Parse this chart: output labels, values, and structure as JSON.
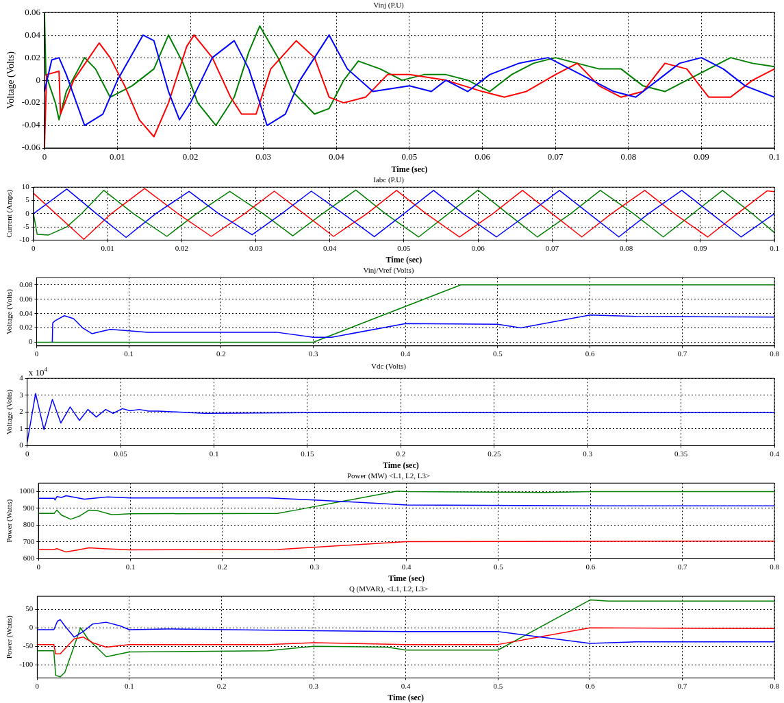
{
  "chart_data": [
    {
      "type": "line",
      "title": "Vinj (P.U)",
      "xlabel": "Time (sec)",
      "ylabel": "Voltage (Volts)",
      "xlim": [
        0,
        0.1
      ],
      "xticks": [
        0,
        0.01,
        0.02,
        0.03,
        0.04,
        0.05,
        0.06,
        0.07,
        0.08,
        0.09,
        0.1
      ],
      "ylim": [
        -0.06,
        0.06
      ],
      "yticks": [
        -0.06,
        -0.04,
        -0.02,
        0,
        0.02,
        0.04,
        0.06
      ],
      "grid": true,
      "series": [
        {
          "color": "#0000ff",
          "x": [
            0,
            0.001,
            0.002,
            0.003,
            0.0055,
            0.008,
            0.01,
            0.0135,
            0.015,
            0.017,
            0.0185,
            0.02,
            0.023,
            0.026,
            0.028,
            0.0305,
            0.033,
            0.035,
            0.039,
            0.0415,
            0.045,
            0.05,
            0.053,
            0.055,
            0.058,
            0.061,
            0.065,
            0.069,
            0.072,
            0.075,
            0.078,
            0.081,
            0.084,
            0.087,
            0.09,
            0.093,
            0.096,
            0.1
          ],
          "values": [
            -0.01,
            0.018,
            0.02,
            0.005,
            -0.04,
            -0.03,
            0,
            0.04,
            0.035,
            -0.01,
            -0.035,
            -0.02,
            0.02,
            0.035,
            0.01,
            -0.04,
            -0.03,
            0,
            0.04,
            0.01,
            -0.01,
            -0.005,
            -0.01,
            0,
            -0.01,
            0.005,
            0.015,
            0.02,
            0.01,
            0,
            -0.01,
            -0.015,
            0,
            0.015,
            0.02,
            0.01,
            -0.005,
            -0.015
          ]
        },
        {
          "color": "#ff0000",
          "x": [
            0,
            0.0003,
            0.002,
            0.0022,
            0.004,
            0.0075,
            0.009,
            0.011,
            0.013,
            0.015,
            0.017,
            0.0195,
            0.0205,
            0.023,
            0.0255,
            0.027,
            0.029,
            0.031,
            0.0345,
            0.037,
            0.039,
            0.041,
            0.044,
            0.047,
            0.05,
            0.055,
            0.06,
            0.063,
            0.066,
            0.07,
            0.073,
            0.076,
            0.079,
            0.082,
            0.085,
            0.088,
            0.091,
            0.094,
            0.097,
            0.1
          ],
          "values": [
            -0.06,
            0.005,
            0.008,
            -0.03,
            0,
            0.033,
            0.02,
            -0.005,
            -0.035,
            -0.05,
            -0.02,
            0.03,
            0.04,
            0.02,
            -0.015,
            -0.03,
            -0.03,
            0.01,
            0.035,
            0.02,
            -0.015,
            -0.02,
            -0.015,
            0.005,
            0.005,
            0,
            -0.01,
            -0.015,
            -0.01,
            0.005,
            0.015,
            -0.005,
            -0.015,
            -0.01,
            0.015,
            0.01,
            -0.015,
            -0.015,
            0,
            0.01
          ]
        },
        {
          "color": "#008000",
          "x": [
            0,
            0.0002,
            0.0015,
            0.002,
            0.003,
            0.0055,
            0.007,
            0.009,
            0.012,
            0.015,
            0.017,
            0.019,
            0.021,
            0.0235,
            0.026,
            0.028,
            0.0295,
            0.032,
            0.034,
            0.037,
            0.039,
            0.041,
            0.043,
            0.046,
            0.049,
            0.052,
            0.055,
            0.058,
            0.061,
            0.064,
            0.067,
            0.07,
            0.073,
            0.076,
            0.079,
            0.082,
            0.085,
            0.088,
            0.091,
            0.094,
            0.097,
            0.1
          ],
          "values": [
            0.06,
            0.005,
            -0.02,
            -0.035,
            -0.01,
            0.02,
            0.01,
            -0.015,
            -0.005,
            0.01,
            0.04,
            0.015,
            -0.02,
            -0.04,
            -0.015,
            0.025,
            0.048,
            0.02,
            -0.01,
            -0.03,
            -0.025,
            0,
            0.017,
            0.01,
            0,
            0.005,
            0.005,
            0,
            -0.01,
            0.005,
            0.015,
            0.02,
            0.015,
            0.01,
            0.01,
            -0.005,
            -0.01,
            0,
            0.01,
            0.02,
            0.015,
            0.012
          ]
        }
      ]
    },
    {
      "type": "line",
      "title": "Iabc (P.U)",
      "xlabel": "Time (sec)",
      "ylabel": "Current (Amps)",
      "xlim": [
        0,
        0.1
      ],
      "xticks": [
        0,
        0.01,
        0.02,
        0.03,
        0.04,
        0.05,
        0.06,
        0.07,
        0.08,
        0.09,
        0.1
      ],
      "ylim": [
        -10,
        10
      ],
      "yticks": [
        -10,
        -5,
        0,
        5,
        10
      ],
      "grid": true,
      "series": [
        {
          "color": "#0000ff",
          "x": [
            0,
            0.0045,
            0.0085,
            0.0125,
            0.0165,
            0.021,
            0.025,
            0.0295,
            0.0335,
            0.0375,
            0.0418,
            0.046,
            0.05,
            0.054,
            0.058,
            0.0625,
            0.0668,
            0.071,
            0.075,
            0.079,
            0.083,
            0.0875,
            0.0915,
            0.0955,
            0.1
          ],
          "values": [
            0,
            9.3,
            0,
            -9,
            0,
            8.4,
            0,
            -8,
            0,
            8.5,
            0,
            -8.7,
            0,
            8.8,
            0,
            -8.8,
            0,
            8.8,
            0,
            -8.8,
            0,
            8.8,
            0,
            -8.8,
            0
          ]
        },
        {
          "color": "#ff0000",
          "x": [
            0,
            0.0068,
            0.0105,
            0.015,
            0.0195,
            0.024,
            0.0285,
            0.0325,
            0.0365,
            0.0405,
            0.045,
            0.049,
            0.053,
            0.0575,
            0.062,
            0.066,
            0.07,
            0.074,
            0.078,
            0.0825,
            0.0865,
            0.091,
            0.095,
            0.099,
            0.1
          ],
          "values": [
            7.7,
            -9.7,
            0,
            9.5,
            0,
            -8.6,
            0,
            8.5,
            0,
            -8.6,
            0,
            8.8,
            0,
            -8.8,
            0,
            8.8,
            0,
            -8.8,
            0,
            8.8,
            0,
            -8.8,
            0,
            8.6,
            8.3
          ]
        },
        {
          "color": "#008000",
          "x": [
            0,
            0.0005,
            0.002,
            0.0045,
            0.0065,
            0.0095,
            0.0135,
            0.018,
            0.022,
            0.0265,
            0.031,
            0.035,
            0.039,
            0.0435,
            0.0475,
            0.052,
            0.056,
            0.06,
            0.064,
            0.068,
            0.0725,
            0.0765,
            0.081,
            0.085,
            0.089,
            0.093,
            0.097,
            0.1
          ],
          "values": [
            0,
            -7.8,
            -8.1,
            -5,
            0,
            8.8,
            0,
            -8.6,
            0,
            8.4,
            0,
            -8.4,
            0,
            8.9,
            0,
            -8.8,
            0,
            8.9,
            0,
            -8.8,
            0,
            8.8,
            0,
            -8.8,
            0,
            8.8,
            0,
            -7.2
          ]
        }
      ]
    },
    {
      "type": "line",
      "title": "Vinj/Vref (Volts)",
      "ylabel": "Voltage (Volts)",
      "xlim": [
        0,
        0.8
      ],
      "xticks": [
        0,
        0.1,
        0.2,
        0.3,
        0.4,
        0.5,
        0.6,
        0.7,
        0.8
      ],
      "ylim": [
        -0.005,
        0.09
      ],
      "yticks": [
        0,
        0.02,
        0.04,
        0.06,
        0.08
      ],
      "grid": true,
      "series": [
        {
          "color": "#0000ff",
          "x": [
            0.017,
            0.0175,
            0.02,
            0.03,
            0.04,
            0.05,
            0.06,
            0.07,
            0.08,
            0.1,
            0.12,
            0.2,
            0.26,
            0.3,
            0.32,
            0.4,
            0.5,
            0.525,
            0.6,
            0.65,
            0.8
          ],
          "values": [
            0,
            0.027,
            0.03,
            0.037,
            0.033,
            0.02,
            0.012,
            0.015,
            0.018,
            0.016,
            0.014,
            0.014,
            0.014,
            0.007,
            0.007,
            0.026,
            0.025,
            0.02,
            0.038,
            0.036,
            0.035
          ]
        },
        {
          "color": "#008000",
          "x": [
            0,
            0.3,
            0.46,
            0.8
          ],
          "values": [
            0,
            0,
            0.08,
            0.08
          ]
        }
      ]
    },
    {
      "type": "line",
      "title": "Vdc (Volts)",
      "xlabel": "Time (sec)",
      "ylabel": "Voltage (Volts)",
      "annotations": [
        "x 10$^{4}$"
      ],
      "xlim": [
        0,
        0.4
      ],
      "xticks": [
        0,
        0.05,
        0.1,
        0.15,
        0.2,
        0.25,
        0.3,
        0.35,
        0.4
      ],
      "ylim": [
        0,
        4
      ],
      "yticks": [
        0,
        1,
        2,
        3,
        4
      ],
      "grid": true,
      "series": [
        {
          "color": "#0000ff",
          "x": [
            0,
            0.0045,
            0.009,
            0.0135,
            0.018,
            0.023,
            0.028,
            0.0325,
            0.037,
            0.042,
            0.046,
            0.051,
            0.055,
            0.06,
            0.065,
            0.07,
            0.08,
            0.095,
            0.11,
            0.15,
            0.4
          ],
          "values": [
            0.2,
            3.1,
            0.95,
            2.75,
            1.35,
            2.3,
            1.5,
            2.15,
            1.7,
            2.15,
            1.92,
            2.2,
            2.07,
            2.15,
            2.05,
            2.05,
            2,
            1.92,
            1.93,
            1.96,
            1.96
          ]
        }
      ]
    },
    {
      "type": "line",
      "title": "Power (MW) <L1, L2, L3>",
      "xlabel": "Time (sec)",
      "ylabel": "Power (Watts)",
      "xlim": [
        0,
        0.8
      ],
      "xticks": [
        0,
        0.1,
        0.2,
        0.3,
        0.4,
        0.5,
        0.6,
        0.7,
        0.8
      ],
      "ylim": [
        600,
        1050
      ],
      "yticks": [
        600,
        700,
        800,
        900,
        1000
      ],
      "grid": true,
      "series": [
        {
          "color": "#0000ff",
          "x": [
            0,
            0.017,
            0.018,
            0.02,
            0.025,
            0.03,
            0.04,
            0.05,
            0.075,
            0.1,
            0.25,
            0.3,
            0.4,
            0.6,
            0.8
          ],
          "values": [
            960,
            960,
            950,
            970,
            965,
            975,
            965,
            955,
            968,
            962,
            962,
            950,
            920,
            915,
            915
          ]
        },
        {
          "color": "#008000",
          "x": [
            0,
            0.017,
            0.02,
            0.025,
            0.035,
            0.045,
            0.055,
            0.065,
            0.08,
            0.1,
            0.26,
            0.28,
            0.39,
            0.4,
            0.55,
            0.6,
            0.8
          ],
          "values": [
            870,
            870,
            890,
            860,
            835,
            855,
            890,
            885,
            862,
            868,
            870,
            890,
            1003,
            1000,
            995,
            1000,
            1000
          ]
        },
        {
          "color": "#ff0000",
          "x": [
            0,
            0.017,
            0.02,
            0.03,
            0.04,
            0.055,
            0.07,
            0.1,
            0.26,
            0.4,
            0.8
          ],
          "values": [
            655,
            655,
            660,
            640,
            650,
            665,
            660,
            653,
            655,
            702,
            705
          ]
        }
      ]
    },
    {
      "type": "line",
      "title": "Q (MVAR), <L1, L2, L3>",
      "xlabel": "Time (sec)",
      "ylabel": "Power (Watts)",
      "xlim": [
        0,
        0.8
      ],
      "xticks": [
        0,
        0.1,
        0.2,
        0.3,
        0.4,
        0.5,
        0.6,
        0.7,
        0.8
      ],
      "ylim": [
        -135,
        85
      ],
      "yticks": [
        -100,
        -50,
        0,
        50
      ],
      "grid": true,
      "series": [
        {
          "color": "#0000ff",
          "x": [
            0,
            0.018,
            0.022,
            0.025,
            0.03,
            0.04,
            0.05,
            0.06,
            0.075,
            0.09,
            0.1,
            0.14,
            0.3,
            0.4,
            0.5,
            0.6,
            0.65,
            0.8
          ],
          "values": [
            -5,
            -5,
            18,
            22,
            5,
            -25,
            -10,
            10,
            15,
            5,
            -5,
            -3,
            -8,
            -10,
            -10,
            -42,
            -38,
            -38
          ]
        },
        {
          "color": "#ff0000",
          "x": [
            0,
            0.018,
            0.02,
            0.025,
            0.04,
            0.05,
            0.06,
            0.075,
            0.1,
            0.25,
            0.3,
            0.4,
            0.5,
            0.6,
            0.8
          ],
          "values": [
            -45,
            -45,
            -70,
            -70,
            -30,
            -25,
            -40,
            -52,
            -45,
            -45,
            -40,
            -45,
            -45,
            0,
            -2
          ]
        },
        {
          "color": "#008000",
          "x": [
            0,
            0.018,
            0.02,
            0.025,
            0.03,
            0.04,
            0.047,
            0.055,
            0.075,
            0.1,
            0.25,
            0.3,
            0.38,
            0.4,
            0.5,
            0.6,
            0.62,
            0.8
          ],
          "values": [
            -62,
            -62,
            -128,
            -132,
            -120,
            -50,
            0,
            -30,
            -78,
            -65,
            -62,
            -50,
            -52,
            -60,
            -60,
            75,
            72,
            72
          ]
        }
      ]
    }
  ]
}
